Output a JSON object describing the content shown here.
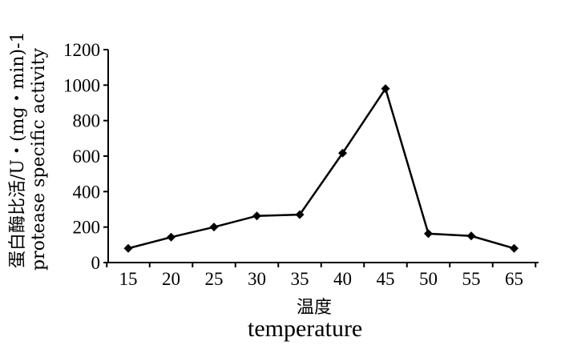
{
  "chart_data": {
    "type": "line",
    "title": "",
    "xlabel": "温度",
    "xlabel_en": "temperature",
    "ylabel": "蛋白酶比活/U・(mg・min)-1",
    "ylabel_en": "protease specific activity",
    "categories": [
      "15",
      "20",
      "25",
      "30",
      "35",
      "40",
      "45",
      "50",
      "55",
      "65"
    ],
    "values": [
      80,
      143,
      200,
      263,
      270,
      617,
      980,
      163,
      150,
      80
    ],
    "ylim": [
      0,
      1200
    ],
    "yticks": [
      "0",
      "200",
      "400",
      "600",
      "800",
      "1000",
      "1200"
    ],
    "grid": false,
    "marker": "diamond",
    "line_color": "#000000"
  }
}
